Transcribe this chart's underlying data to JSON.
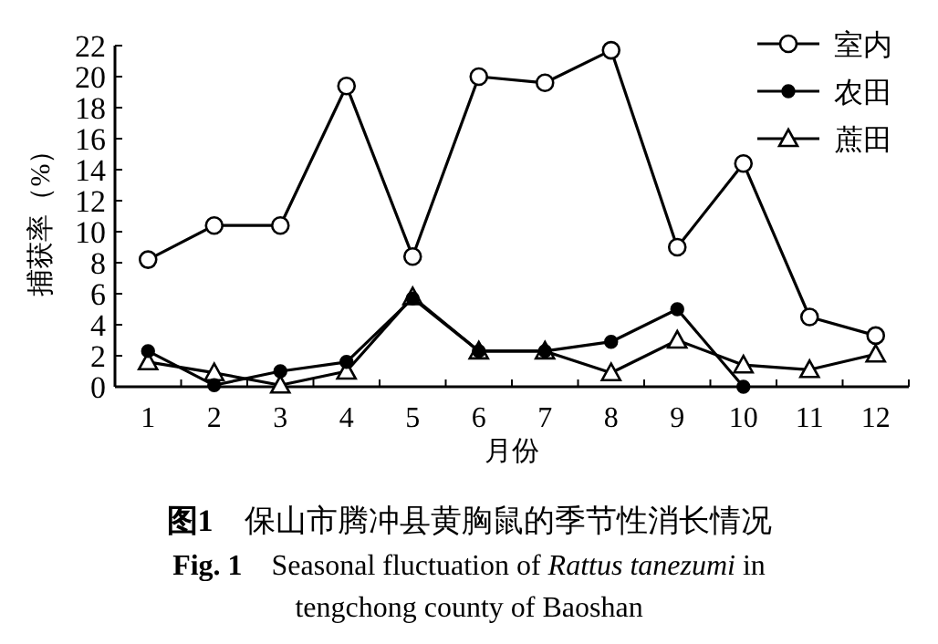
{
  "chart_data": {
    "type": "line",
    "title": "**图1**　保山市腾冲县黄胸鼠的季节性消长情况",
    "subtitle": "**Fig. 1**　Seasonal fluctuation of *Rattus tanezumi* in tengchong county of Baoshan",
    "xlabel": "月份",
    "ylabel": "捕获率（%）",
    "categories": [
      "1",
      "2",
      "3",
      "4",
      "5",
      "6",
      "7",
      "8",
      "9",
      "10",
      "11",
      "12"
    ],
    "series": [
      {
        "name": "室内",
        "color": "#000000",
        "marker": "circle",
        "values": [
          8.2,
          10.4,
          10.4,
          19.4,
          8.4,
          20.0,
          19.6,
          21.7,
          9.0,
          14.4,
          4.5,
          3.3
        ]
      },
      {
        "name": "农田",
        "color": "#000000",
        "marker": "circle",
        "values": [
          2.3,
          0.1,
          1.0,
          1.6,
          5.7,
          2.3,
          2.3,
          2.9,
          5.0,
          0.0,
          null,
          null
        ]
      },
      {
        "name": "蔗田",
        "color": "#000000",
        "marker": "triangle",
        "values": [
          1.6,
          0.9,
          0.1,
          1.0,
          5.8,
          2.3,
          2.3,
          0.9,
          3.0,
          1.4,
          1.1,
          2.1
        ]
      }
    ],
    "ylim": [
      0,
      22
    ],
    "yticks": [
      0,
      2,
      4,
      6,
      8,
      10,
      12,
      14,
      16,
      18,
      20,
      22
    ],
    "legend": "top right",
    "line_style": "solid"
  }
}
